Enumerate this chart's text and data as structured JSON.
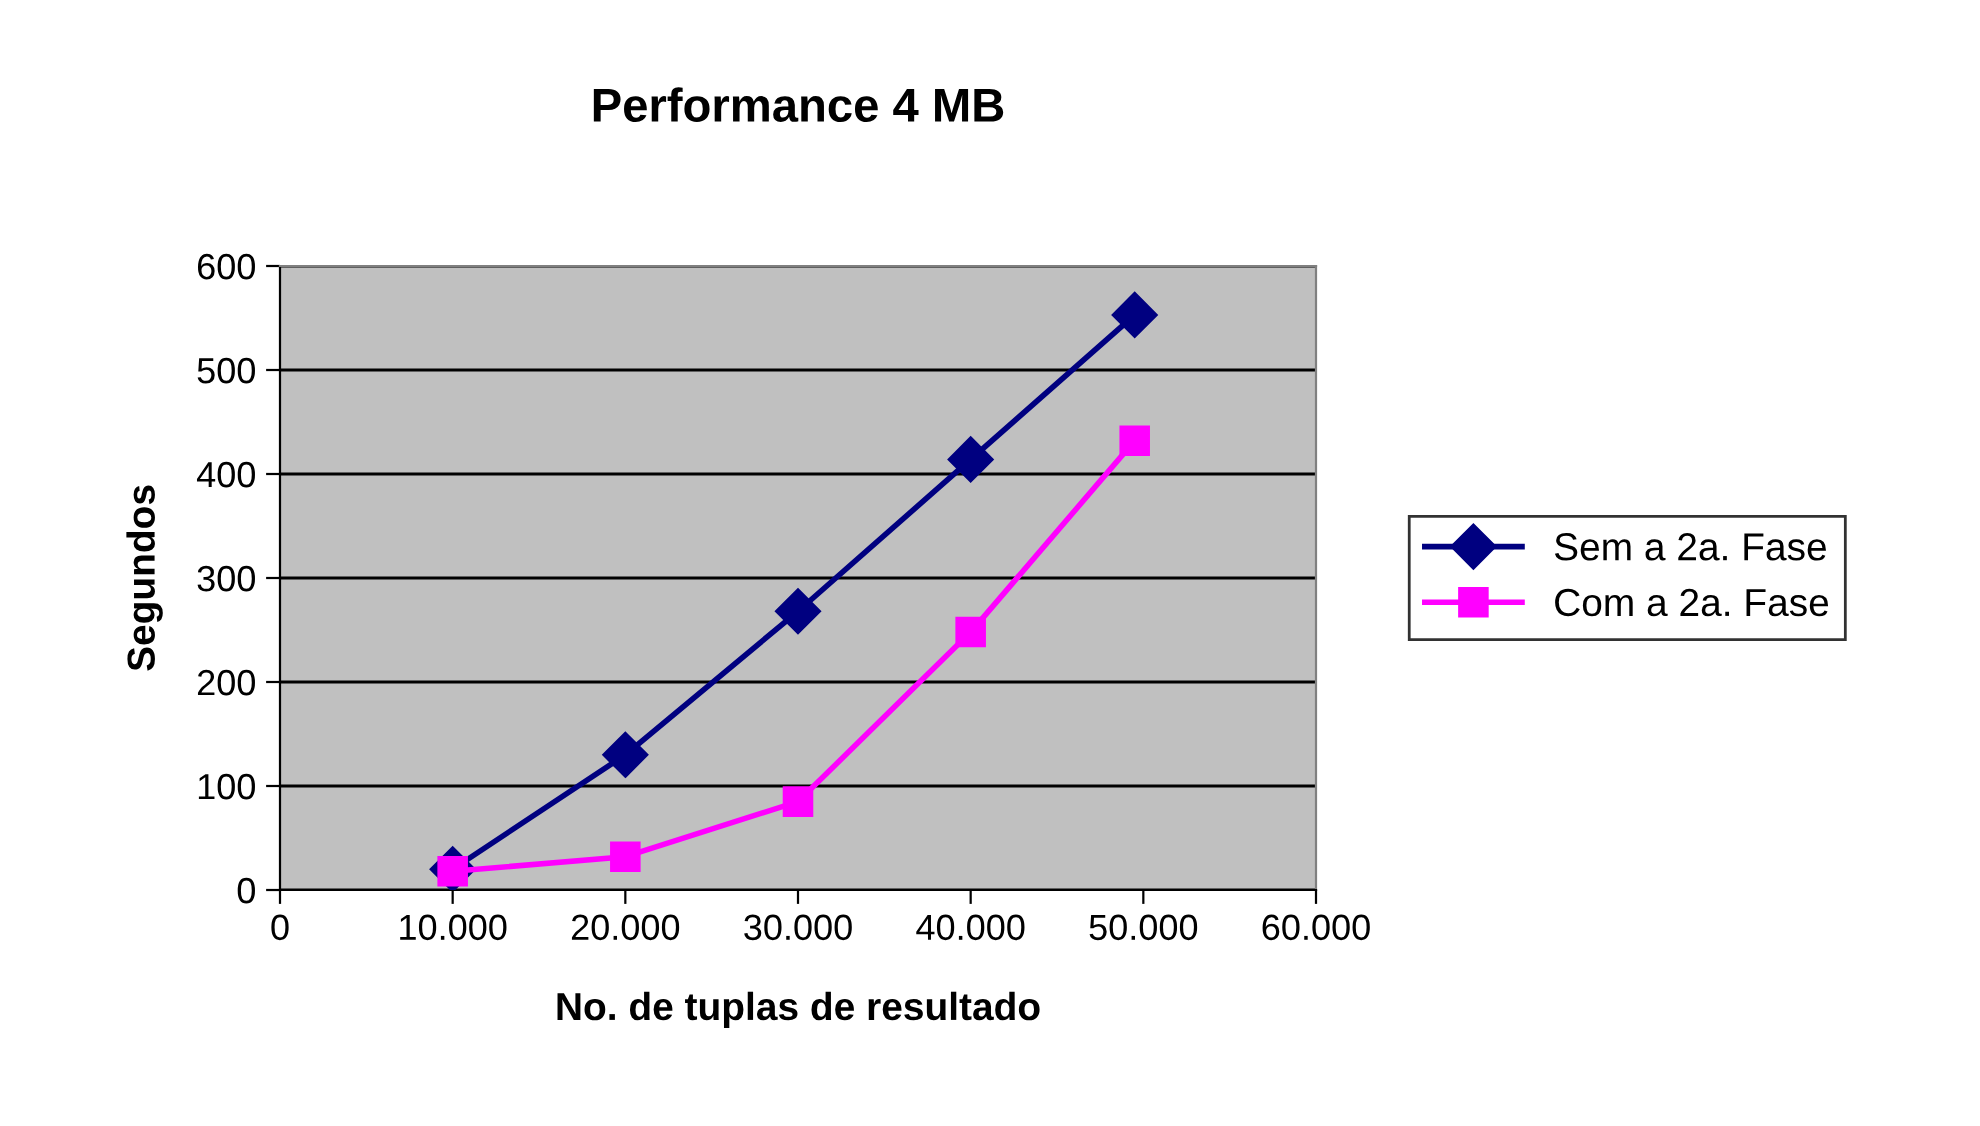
{
  "chart_data": {
    "type": "line",
    "title": "Performance 4 MB",
    "xlabel": "No. de tuplas de resultado",
    "ylabel": "Segundos",
    "series": [
      {
        "name": "Sem a 2a. Fase",
        "color": "#000080",
        "marker": "diamond",
        "x": [
          10000,
          20000,
          30000,
          40000,
          49500
        ],
        "values": [
          20,
          130,
          268,
          414,
          553
        ]
      },
      {
        "name": "Com a 2a. Fase",
        "color": "#ff00ff",
        "marker": "square",
        "x": [
          10000,
          20000,
          30000,
          40000,
          49500
        ],
        "values": [
          18,
          32,
          85,
          248,
          432
        ]
      }
    ],
    "xlim": [
      0,
      60000
    ],
    "xticks": [
      0,
      {
        "value": 10000,
        "label": "10.000"
      },
      {
        "value": 20000,
        "label": "20.000"
      },
      {
        "value": 30000,
        "label": "30.000"
      },
      {
        "value": 40000,
        "label": "40.000"
      },
      {
        "value": 50000,
        "label": "50.000"
      },
      {
        "value": 60000,
        "label": "60.000"
      }
    ],
    "ylim": [
      0,
      600
    ],
    "yticks": [
      0,
      100,
      200,
      300,
      400,
      500,
      600
    ],
    "grid": "y",
    "legend": "right",
    "line_style": "solid"
  }
}
